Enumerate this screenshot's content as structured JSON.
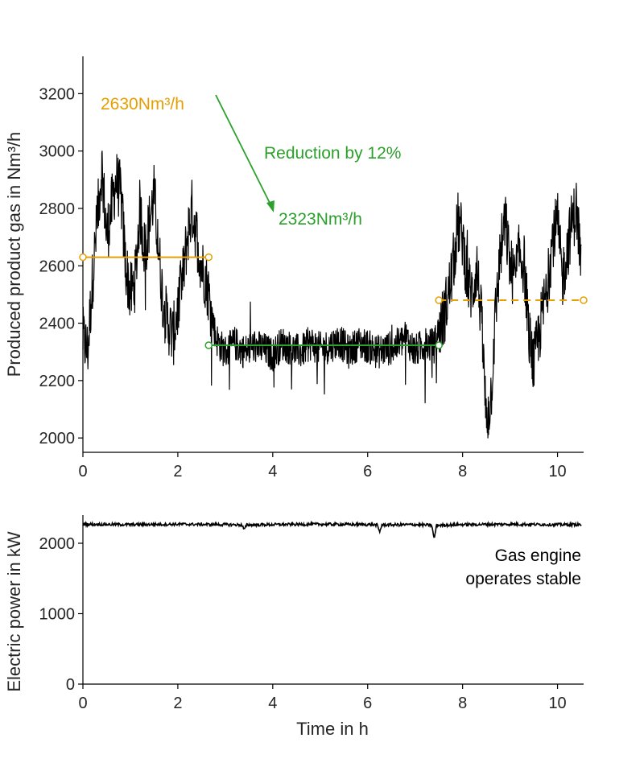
{
  "chart_data": [
    {
      "type": "line",
      "xlabel": "",
      "ylabel": "Produced product gas in Nm³/h",
      "xlim": [
        0,
        10.55
      ],
      "ylim": [
        1950,
        3330
      ],
      "xticks": [
        0,
        2,
        4,
        6,
        8,
        10
      ],
      "yticks": [
        2000,
        2200,
        2400,
        2600,
        2800,
        3000,
        3200
      ],
      "grid": false,
      "series": [
        {
          "color": "#000000",
          "x": [
            0,
            0.1,
            0.2,
            0.3,
            0.4,
            0.5,
            0.6,
            0.7,
            0.8,
            0.9,
            1.0,
            1.1,
            1.2,
            1.3,
            1.4,
            1.5,
            1.6,
            1.7,
            1.8,
            1.9,
            2.0,
            2.1,
            2.2,
            2.3,
            2.4,
            2.5,
            2.6,
            2.7,
            2.8,
            2.9,
            3.0,
            3.2,
            3.4,
            3.6,
            3.8,
            4.0,
            4.2,
            4.4,
            4.6,
            4.8,
            5.0,
            5.2,
            5.4,
            5.6,
            5.8,
            6.0,
            6.2,
            6.4,
            6.6,
            6.8,
            7.0,
            7.2,
            7.4,
            7.5,
            7.6,
            7.7,
            7.8,
            7.9,
            8.0,
            8.1,
            8.2,
            8.3,
            8.4,
            8.5,
            8.6,
            8.7,
            8.8,
            8.9,
            9.0,
            9.1,
            9.2,
            9.3,
            9.4,
            9.5,
            9.6,
            9.7,
            9.8,
            9.9,
            10.0,
            10.1,
            10.2,
            10.3,
            10.4,
            10.5
          ],
          "y": [
            2350,
            2300,
            2550,
            2750,
            2950,
            2700,
            2800,
            2900,
            2850,
            2600,
            2500,
            2550,
            2800,
            2650,
            2750,
            2850,
            2650,
            2450,
            2400,
            2350,
            2450,
            2550,
            2700,
            2800,
            2700,
            2600,
            2550,
            2450,
            2350,
            2320,
            2300,
            2330,
            2300,
            2320,
            2310,
            2290,
            2330,
            2310,
            2300,
            2330,
            2310,
            2320,
            2340,
            2300,
            2330,
            2320,
            2300,
            2310,
            2320,
            2350,
            2300,
            2330,
            2320,
            2380,
            2420,
            2500,
            2600,
            2750,
            2700,
            2550,
            2500,
            2600,
            2400,
            2050,
            2150,
            2450,
            2650,
            2750,
            2600,
            2550,
            2650,
            2600,
            2350,
            2250,
            2350,
            2450,
            2550,
            2700,
            2750,
            2550,
            2650,
            2750,
            2800,
            2600
          ]
        }
      ],
      "annotations": {
        "label_before": "2630Nm³/h",
        "label_after": "2323Nm³/h",
        "label_reduction": "Reduction by 12%",
        "line_before": {
          "x": [
            0.0,
            2.65
          ],
          "y": 2630,
          "color": "#e69f00"
        },
        "line_after": {
          "x": [
            2.65,
            7.5
          ],
          "y": 2323,
          "color": "#2ca02c"
        },
        "line_dashed": {
          "x": [
            7.5,
            10.55
          ],
          "y": 2480,
          "color": "#e69f00"
        },
        "colors": {
          "orange": "#e69f00",
          "green": "#2ca02c"
        }
      }
    },
    {
      "type": "line",
      "xlabel": "Time in h",
      "ylabel": "Electric power in kW",
      "xlim": [
        0,
        10.55
      ],
      "ylim": [
        0,
        2400
      ],
      "xticks": [
        0,
        2,
        4,
        6,
        8,
        10
      ],
      "yticks": [
        0,
        1000,
        2000
      ],
      "grid": false,
      "series": [
        {
          "color": "#000000",
          "x": [
            0,
            1,
            2,
            3,
            3.35,
            3.4,
            3.45,
            4,
            5,
            6,
            6.2,
            6.25,
            6.3,
            7,
            7.35,
            7.4,
            7.45,
            8,
            9,
            10,
            10.5
          ],
          "y": [
            2270,
            2265,
            2270,
            2265,
            2260,
            2190,
            2260,
            2265,
            2270,
            2265,
            2260,
            2160,
            2260,
            2265,
            2255,
            2060,
            2255,
            2265,
            2270,
            2265,
            2265
          ]
        }
      ],
      "annotations": {
        "note_line1": "Gas engine",
        "note_line2": "operates stable"
      }
    }
  ]
}
